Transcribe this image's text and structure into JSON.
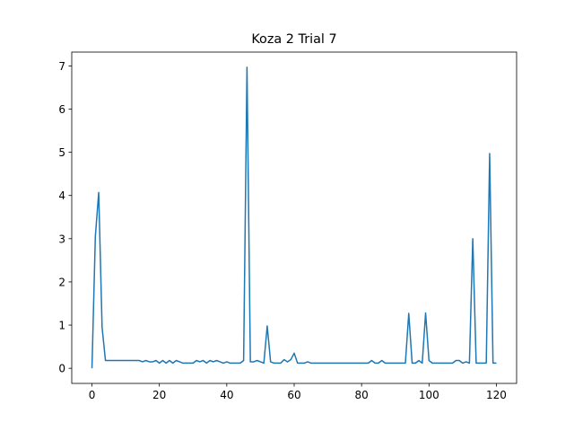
{
  "chart_data": {
    "type": "line",
    "title": "Koza 2 Trial 7",
    "color": "#1f77b4",
    "x": [
      0,
      1,
      2,
      3,
      4,
      5,
      6,
      7,
      8,
      9,
      10,
      11,
      12,
      13,
      14,
      15,
      16,
      17,
      18,
      19,
      20,
      21,
      22,
      23,
      24,
      25,
      26,
      27,
      28,
      29,
      30,
      31,
      32,
      33,
      34,
      35,
      36,
      37,
      38,
      39,
      40,
      41,
      42,
      43,
      44,
      45,
      46,
      47,
      48,
      49,
      50,
      51,
      52,
      53,
      54,
      55,
      56,
      57,
      58,
      59,
      60,
      61,
      62,
      63,
      64,
      65,
      66,
      67,
      68,
      69,
      70,
      71,
      72,
      73,
      74,
      75,
      76,
      77,
      78,
      79,
      80,
      81,
      82,
      83,
      84,
      85,
      86,
      87,
      88,
      89,
      90,
      91,
      92,
      93,
      94,
      95,
      96,
      97,
      98,
      99,
      100,
      101,
      102,
      103,
      104,
      105,
      106,
      107,
      108,
      109,
      110,
      111,
      112,
      113,
      114,
      115,
      116,
      117,
      118,
      119,
      120
    ],
    "values": [
      0,
      3.05,
      4.07,
      0.95,
      0.18,
      0.18,
      0.18,
      0.18,
      0.18,
      0.18,
      0.18,
      0.18,
      0.18,
      0.18,
      0.18,
      0.15,
      0.18,
      0.15,
      0.15,
      0.18,
      0.12,
      0.18,
      0.12,
      0.18,
      0.12,
      0.18,
      0.15,
      0.12,
      0.12,
      0.12,
      0.12,
      0.18,
      0.15,
      0.18,
      0.12,
      0.18,
      0.15,
      0.18,
      0.15,
      0.12,
      0.15,
      0.12,
      0.12,
      0.12,
      0.12,
      0.18,
      6.97,
      0.15,
      0.15,
      0.18,
      0.15,
      0.12,
      0.98,
      0.15,
      0.12,
      0.12,
      0.12,
      0.2,
      0.15,
      0.2,
      0.35,
      0.12,
      0.12,
      0.12,
      0.15,
      0.12,
      0.12,
      0.12,
      0.12,
      0.12,
      0.12,
      0.12,
      0.12,
      0.12,
      0.12,
      0.12,
      0.12,
      0.12,
      0.12,
      0.12,
      0.12,
      0.12,
      0.12,
      0.18,
      0.12,
      0.12,
      0.18,
      0.12,
      0.12,
      0.12,
      0.12,
      0.12,
      0.12,
      0.12,
      1.27,
      0.12,
      0.12,
      0.18,
      0.12,
      1.28,
      0.18,
      0.12,
      0.12,
      0.12,
      0.12,
      0.12,
      0.12,
      0.12,
      0.18,
      0.18,
      0.12,
      0.15,
      0.12,
      3.0,
      0.12,
      0.12,
      0.12,
      0.12,
      4.97,
      0.12,
      0.12
    ],
    "xlim": [
      -6,
      126
    ],
    "ylim": [
      -0.35,
      7.32
    ],
    "xticks": [
      0,
      20,
      40,
      60,
      80,
      100,
      120
    ],
    "yticks": [
      0,
      1,
      2,
      3,
      4,
      5,
      6,
      7
    ]
  }
}
